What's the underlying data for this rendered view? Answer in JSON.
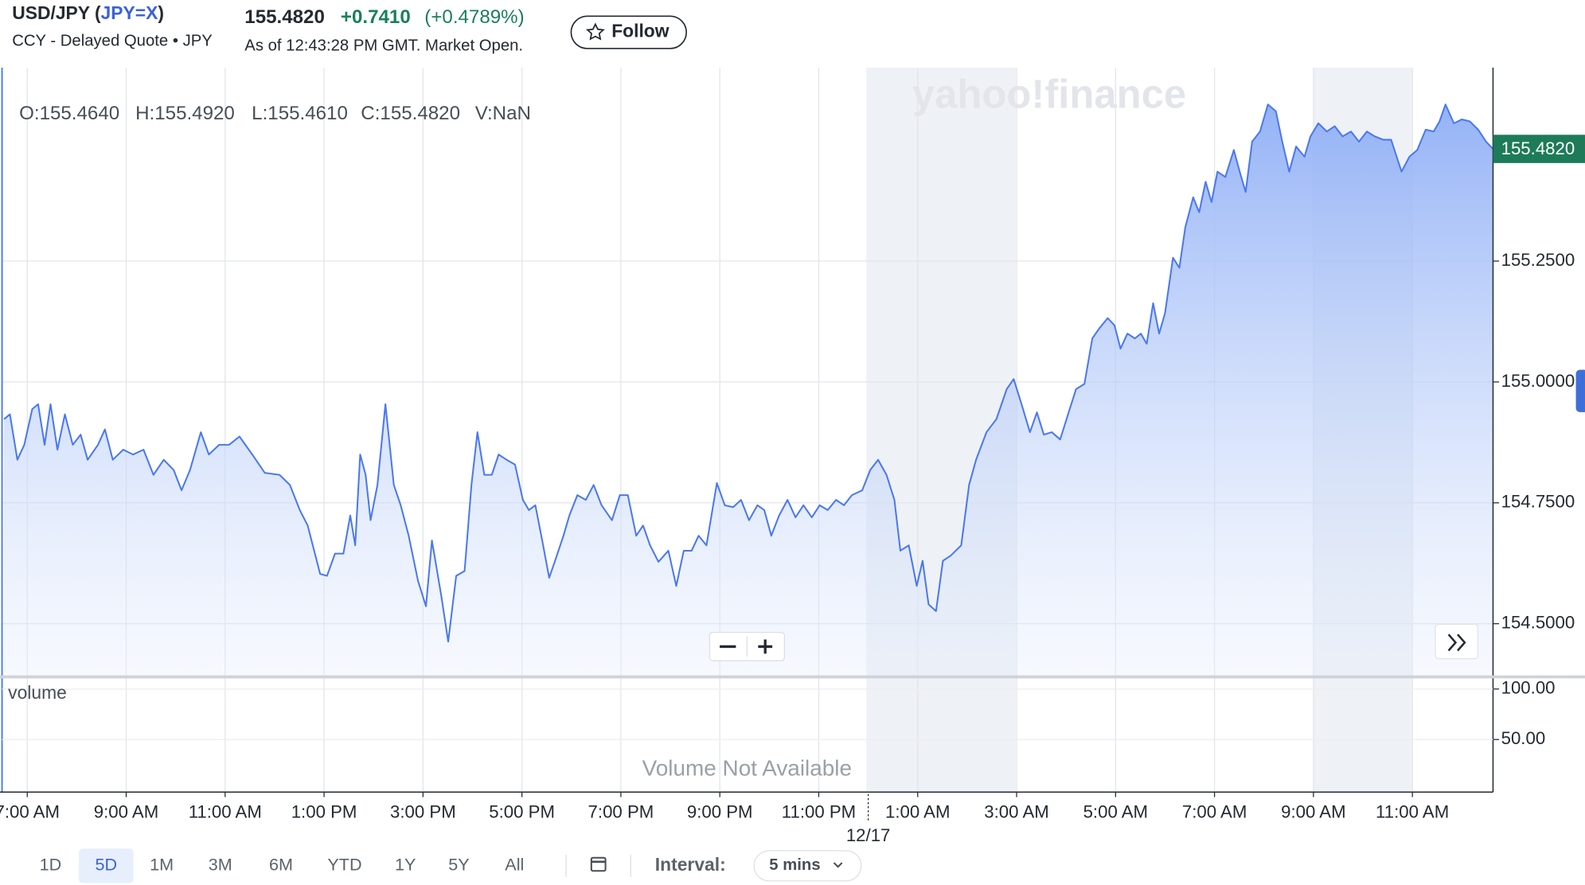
{
  "header": {
    "title_prefix": "USD/JPY (",
    "ticker": "JPY=X",
    "title_suffix": ")",
    "subtitle": "CCY - Delayed Quote • JPY",
    "price": "155.4820",
    "change": "+0.7410",
    "change_percent": "(+0.4789%)",
    "as_of": "As of 12:43:28 PM GMT. Market Open.",
    "follow": "Follow"
  },
  "ohlc": [
    "O:155.4640",
    "H:155.4920",
    "L:155.4610",
    "C:155.4820",
    "V:NaN"
  ],
  "watermark": "yahoo!finance",
  "chart_data": {
    "type": "area",
    "color": "#4a78ee",
    "grid": true,
    "series": [
      {
        "name": "USD/JPY",
        "x": [
          6.53,
          6.65,
          6.8,
          6.94,
          7.1,
          7.22,
          7.35,
          7.47,
          7.61,
          7.76,
          7.92,
          8.08,
          8.22,
          8.43,
          8.57,
          8.73,
          8.94,
          9.14,
          9.35,
          9.55,
          9.76,
          9.96,
          10.12,
          10.29,
          10.51,
          10.67,
          10.88,
          11.08,
          11.29,
          11.55,
          11.8,
          12.1,
          12.31,
          12.51,
          12.67,
          12.92,
          13.06,
          13.22,
          13.39,
          13.53,
          13.63,
          13.73,
          13.84,
          13.94,
          14.08,
          14.24,
          14.41,
          14.55,
          14.71,
          14.9,
          15.06,
          15.18,
          15.37,
          15.51,
          15.67,
          15.84,
          15.98,
          16.1,
          16.24,
          16.39,
          16.53,
          16.69,
          16.86,
          17.02,
          17.14,
          17.27,
          17.41,
          17.55,
          17.67,
          17.84,
          17.96,
          18.12,
          18.29,
          18.45,
          18.61,
          18.82,
          18.98,
          19.14,
          19.31,
          19.45,
          19.59,
          19.76,
          19.96,
          20.12,
          20.27,
          20.43,
          20.57,
          20.73,
          20.94,
          21.1,
          21.27,
          21.43,
          21.59,
          21.76,
          21.9,
          22.04,
          22.2,
          22.37,
          22.53,
          22.69,
          22.86,
          23.02,
          23.18,
          23.35,
          23.51,
          23.67,
          23.88,
          24.04,
          24.2,
          24.37,
          24.53,
          24.65,
          24.82,
          24.98,
          25.1,
          25.22,
          25.37,
          25.51,
          25.67,
          25.88,
          26.04,
          26.18,
          26.39,
          26.59,
          26.8,
          26.94,
          27.1,
          27.27,
          27.41,
          27.55,
          27.71,
          27.88,
          28.04,
          28.2,
          28.37,
          28.53,
          28.67,
          28.84,
          28.98,
          29.1,
          29.24,
          29.39,
          29.51,
          29.63,
          29.76,
          29.88,
          30.0,
          30.16,
          30.29,
          30.41,
          30.57,
          30.69,
          30.82,
          30.94,
          31.06,
          31.22,
          31.39,
          31.51,
          31.63,
          31.76,
          31.92,
          32.08,
          32.24,
          32.37,
          32.51,
          32.65,
          32.82,
          32.94,
          33.1,
          33.27,
          33.43,
          33.59,
          33.76,
          33.92,
          34.08,
          34.24,
          34.41,
          34.57,
          34.78,
          34.94,
          35.1,
          35.27,
          35.43,
          35.55,
          35.67,
          35.84,
          36.0,
          36.16,
          36.33,
          36.49,
          36.63
        ],
        "values": [
          154.923,
          154.933,
          154.839,
          154.87,
          154.944,
          154.954,
          154.87,
          154.954,
          154.86,
          154.933,
          154.87,
          154.891,
          154.839,
          154.87,
          154.902,
          154.839,
          154.86,
          154.85,
          154.86,
          154.808,
          154.839,
          154.818,
          154.776,
          154.818,
          154.896,
          154.85,
          154.87,
          154.87,
          154.887,
          154.85,
          154.812,
          154.808,
          154.787,
          154.735,
          154.703,
          154.603,
          154.599,
          154.645,
          154.645,
          154.724,
          154.662,
          154.85,
          154.808,
          154.714,
          154.787,
          154.954,
          154.787,
          154.745,
          154.682,
          154.588,
          154.536,
          154.672,
          154.557,
          154.463,
          154.599,
          154.609,
          154.787,
          154.896,
          154.808,
          154.808,
          154.85,
          154.839,
          154.829,
          154.756,
          154.735,
          154.745,
          154.672,
          154.595,
          154.63,
          154.682,
          154.724,
          154.766,
          154.756,
          154.787,
          154.745,
          154.714,
          154.766,
          154.766,
          154.682,
          154.703,
          154.662,
          154.628,
          154.651,
          154.578,
          154.651,
          154.651,
          154.682,
          154.662,
          154.791,
          154.745,
          154.741,
          154.756,
          154.714,
          154.745,
          154.735,
          154.682,
          154.724,
          154.756,
          154.72,
          154.745,
          154.72,
          154.745,
          154.735,
          154.756,
          154.745,
          154.766,
          154.776,
          154.818,
          154.839,
          154.808,
          154.756,
          154.651,
          154.662,
          154.578,
          154.63,
          154.54,
          154.526,
          154.63,
          154.641,
          154.662,
          154.787,
          154.839,
          154.896,
          154.923,
          154.985,
          155.006,
          154.954,
          154.896,
          154.937,
          154.891,
          154.896,
          154.881,
          154.933,
          154.985,
          154.996,
          155.09,
          155.111,
          155.132,
          155.117,
          155.069,
          155.1,
          155.09,
          155.1,
          155.079,
          155.163,
          155.1,
          155.142,
          155.257,
          155.236,
          155.32,
          155.382,
          155.351,
          155.414,
          155.372,
          155.435,
          155.424,
          155.48,
          155.435,
          155.393,
          155.497,
          155.518,
          155.574,
          155.56,
          155.497,
          155.435,
          155.487,
          155.466,
          155.508,
          155.535,
          155.518,
          155.529,
          155.508,
          155.518,
          155.497,
          155.518,
          155.508,
          155.501,
          155.501,
          155.435,
          155.466,
          155.48,
          155.522,
          155.518,
          155.539,
          155.574,
          155.535,
          155.543,
          155.539,
          155.522,
          155.497,
          155.482
        ]
      }
    ],
    "xlim": [
      6.49,
      36.63
    ],
    "xticks": [
      {
        "value": 7,
        "label": "7:00 AM"
      },
      {
        "value": 9,
        "label": "9:00 AM"
      },
      {
        "value": 11,
        "label": "11:00 AM"
      },
      {
        "value": 13,
        "label": "1:00 PM"
      },
      {
        "value": 15,
        "label": "3:00 PM"
      },
      {
        "value": 17,
        "label": "5:00 PM"
      },
      {
        "value": 19,
        "label": "7:00 PM"
      },
      {
        "value": 21,
        "label": "9:00 PM"
      },
      {
        "value": 23,
        "label": "11:00 PM"
      },
      {
        "value": 25,
        "label": "1:00 AM"
      },
      {
        "value": 27,
        "label": "3:00 AM"
      },
      {
        "value": 29,
        "label": "5:00 AM"
      },
      {
        "value": 31,
        "label": "7:00 AM"
      },
      {
        "value": 33,
        "label": "9:00 AM"
      },
      {
        "value": 35,
        "label": "11:00 AM"
      }
    ],
    "date_ticks": [
      {
        "value": 24,
        "label": "12/17"
      }
    ],
    "ylim": [
      154.39,
      155.65
    ],
    "yticks": [
      {
        "value": 154.5,
        "label": "154.5000"
      },
      {
        "value": 154.75,
        "label": "154.7500"
      },
      {
        "value": 155,
        "label": "155.0000"
      },
      {
        "value": 155.25,
        "label": "155.2500"
      }
    ]
  },
  "volume": {
    "label": "volume",
    "note": "Volume Not Available",
    "ylim": [
      -2,
      112
    ],
    "yticks": [
      {
        "value": 50,
        "label": "50.00"
      },
      {
        "value": 100,
        "label": "100.00"
      }
    ]
  },
  "ranges": [
    "1D",
    "5D",
    "1M",
    "3M",
    "6M",
    "YTD",
    "1Y",
    "5Y",
    "All"
  ],
  "selected_range": "5D",
  "interval_label": "Interval:",
  "interval": "5 mins"
}
